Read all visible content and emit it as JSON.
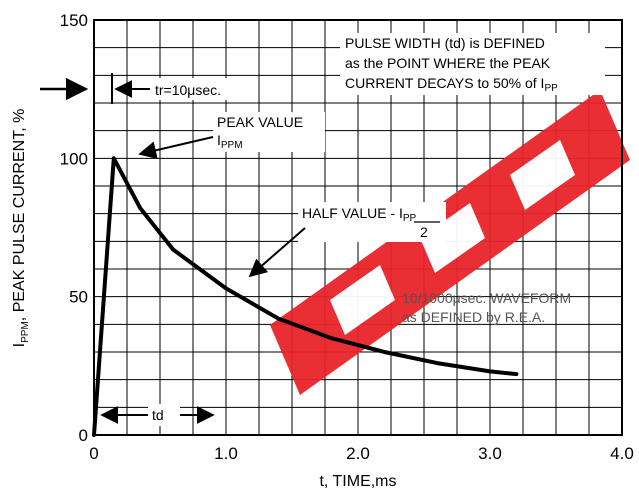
{
  "chart_data": {
    "type": "line",
    "xlabel": "t, TIME,ms",
    "ylabel_prefix": "I",
    "ylabel_sub": "PPM",
    "ylabel_rest": ", PEAK PULSE CURRENT, %",
    "xlim": [
      0,
      4.0
    ],
    "ylim": [
      0,
      150
    ],
    "x_ticks": [
      {
        "v": 0,
        "label": "0"
      },
      {
        "v": 1.0,
        "label": "1.0"
      },
      {
        "v": 2.0,
        "label": "2.0"
      },
      {
        "v": 3.0,
        "label": "3.0"
      },
      {
        "v": 4.0,
        "label": "4.0"
      }
    ],
    "y_ticks": [
      {
        "v": 0,
        "label": "0"
      },
      {
        "v": 50,
        "label": "50"
      },
      {
        "v": 100,
        "label": "100"
      },
      {
        "v": 150,
        "label": "150"
      }
    ],
    "grid": true,
    "grid_x_step": 0.25,
    "grid_y_step": 10,
    "series": [
      {
        "points": [
          [
            0,
            0
          ],
          [
            0.15,
            100
          ],
          [
            0.35,
            82
          ],
          [
            0.6,
            67
          ],
          [
            1.0,
            53
          ],
          [
            1.4,
            42
          ],
          [
            1.8,
            35
          ],
          [
            2.2,
            30
          ],
          [
            2.6,
            26
          ],
          [
            3.0,
            23
          ],
          [
            3.2,
            22
          ]
        ],
        "color": "#000000"
      }
    ],
    "annotations": {
      "pulse_width_lines": [
        "PULSE WIDTH (td) is DEFINED",
        "as the POINT WHERE the PEAK",
        "CURRENT DECAYS to 50% of I"
      ],
      "pulse_width_sub": "PP",
      "tr_label": "tr=10μsec.",
      "peak_value": "PEAK VALUE",
      "peak_symbol": "I",
      "peak_symbol_sub": "PPM",
      "half_value": "HALF VALUE - ",
      "half_numerator": "I",
      "half_numerator_sub": "PP",
      "half_denominator": "2",
      "waveform_line1": "10/1000μsec. WAVEFORM",
      "waveform_line2": "as DEFINED by R.E.A.",
      "td_label": "td"
    }
  },
  "colors": {
    "curve": "#000000",
    "watermark": "#e8242a",
    "grid": "#000000",
    "annotation_box": "#ffffff"
  }
}
